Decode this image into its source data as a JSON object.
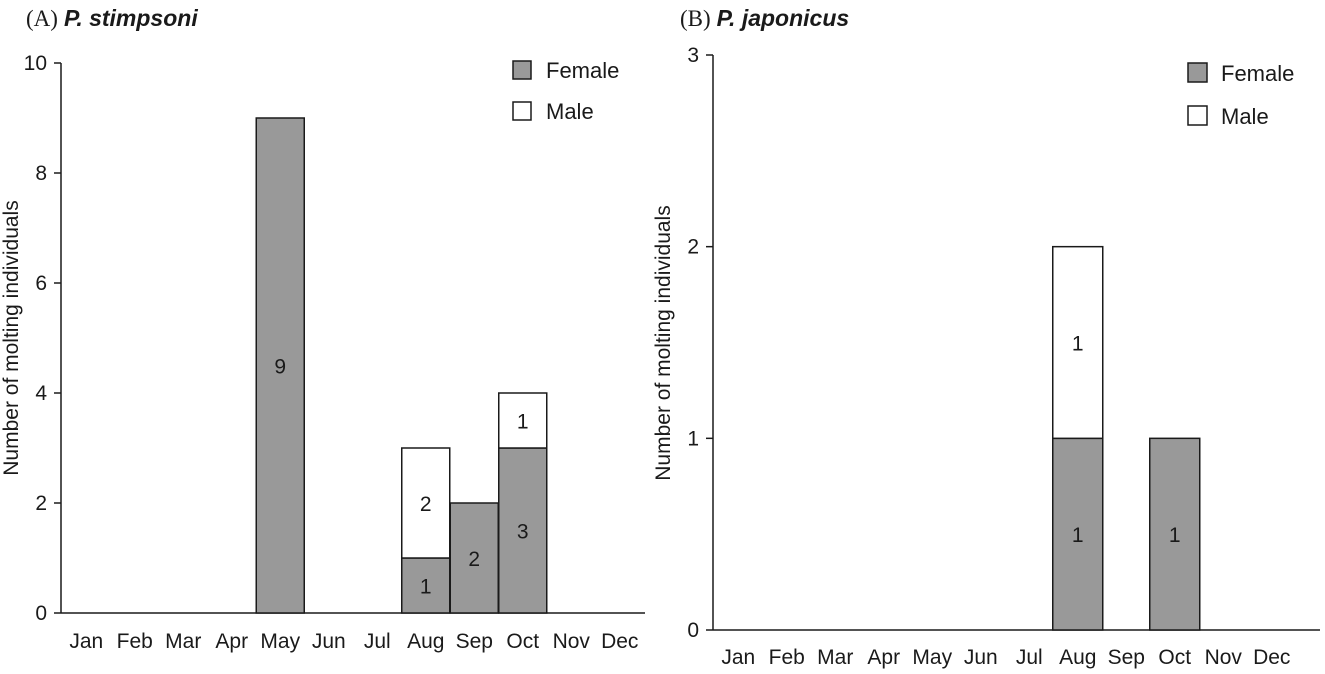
{
  "colors": {
    "female": "#999999",
    "male": "#ffffff",
    "stroke": "#1a1a1a"
  },
  "chart_data": [
    {
      "type": "bar",
      "stacked": true,
      "panel_label": "(A)",
      "title": "P. stimpsoni",
      "xlabel": "",
      "ylabel": "Number of molting individuals",
      "ylim": [
        0,
        10
      ],
      "yticks": [
        0,
        2,
        4,
        6,
        8,
        10
      ],
      "grid": false,
      "legend_position": "top-right",
      "categories": [
        "Jan",
        "Feb",
        "Mar",
        "Apr",
        "May",
        "Jun",
        "Jul",
        "Aug",
        "Sep",
        "Oct",
        "Nov",
        "Dec"
      ],
      "series": [
        {
          "name": "Female",
          "color": "#999999",
          "values": [
            0,
            0,
            0,
            0,
            9,
            0,
            0,
            1,
            2,
            3,
            0,
            0
          ]
        },
        {
          "name": "Male",
          "color": "#ffffff",
          "values": [
            0,
            0,
            0,
            0,
            0,
            0,
            0,
            2,
            0,
            1,
            0,
            0
          ]
        }
      ]
    },
    {
      "type": "bar",
      "stacked": true,
      "panel_label": "(B)",
      "title": "P. japonicus",
      "xlabel": "",
      "ylabel": "Number of molting individuals",
      "ylim": [
        0,
        3
      ],
      "yticks": [
        0,
        1,
        2,
        3
      ],
      "grid": false,
      "legend_position": "top-right",
      "categories": [
        "Jan",
        "Feb",
        "Mar",
        "Apr",
        "May",
        "Jun",
        "Jul",
        "Aug",
        "Sep",
        "Oct",
        "Nov",
        "Dec"
      ],
      "series": [
        {
          "name": "Female",
          "color": "#999999",
          "values": [
            0,
            0,
            0,
            0,
            0,
            0,
            0,
            1,
            0,
            1,
            0,
            0
          ]
        },
        {
          "name": "Male",
          "color": "#ffffff",
          "values": [
            0,
            0,
            0,
            0,
            0,
            0,
            0,
            1,
            0,
            0,
            0,
            0
          ]
        }
      ]
    }
  ]
}
